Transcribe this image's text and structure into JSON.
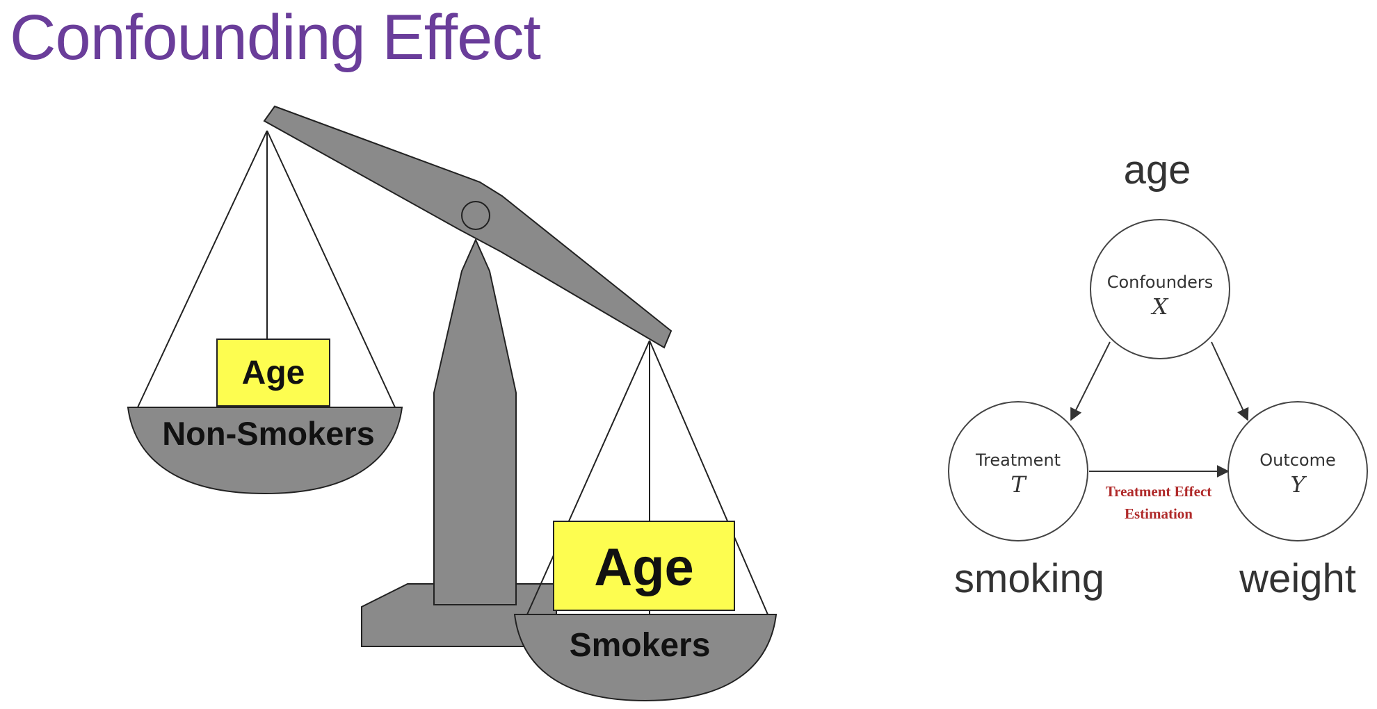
{
  "title": "Confounding Effect",
  "scale": {
    "left_box_label": "Age",
    "left_pan_label": "Non-Smokers",
    "right_box_label": "Age",
    "right_pan_label": "Smokers"
  },
  "causal_diagram": {
    "confounder": {
      "outer_label": "age",
      "name": "Confounders",
      "symbol": "X"
    },
    "treatment": {
      "outer_label": "smoking",
      "name": "Treatment",
      "symbol": "T"
    },
    "outcome": {
      "outer_label": "weight",
      "name": "Outcome",
      "symbol": "Y"
    },
    "effect_label_line1": "Treatment Effect",
    "effect_label_line2": "Estimation"
  },
  "colors": {
    "title": "#6a3d9a",
    "scale_gray": "#8a8a8a",
    "age_box": "#fdfd50",
    "effect_text": "#b02a2a"
  }
}
